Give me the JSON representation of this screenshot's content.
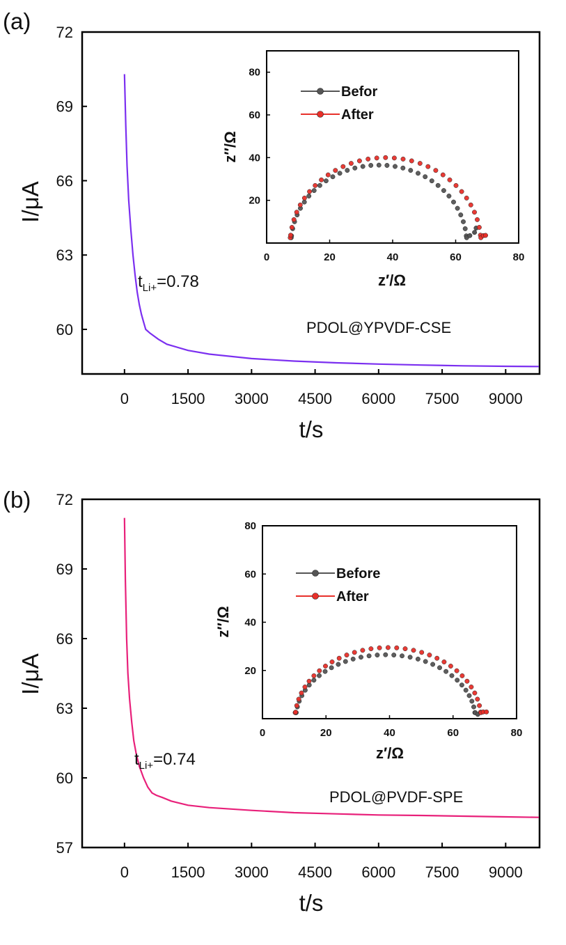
{
  "chart_data": [
    {
      "panel_label": "(a)",
      "type": "line",
      "title": "",
      "xlabel": "t/s",
      "ylabel": "I/μA",
      "xlim": [
        -1000,
        9800
      ],
      "ylim": [
        58.2,
        72
      ],
      "xticks": [
        0,
        1500,
        3000,
        4500,
        6000,
        7500,
        9000
      ],
      "yticks": [
        60,
        63,
        66,
        69,
        72
      ],
      "xtick_labels": [
        "0",
        "1500",
        "3000",
        "4500",
        "6000",
        "7500",
        "9000"
      ],
      "ytick_labels": [
        "60",
        "63",
        "66",
        "69",
        "72"
      ],
      "series": [
        {
          "name": "PDOL@YPVDF-CSE",
          "color": "#7b2ff0",
          "x": [
            0,
            30,
            60,
            100,
            150,
            200,
            250,
            300,
            350,
            400,
            450,
            500,
            600,
            800,
            1000,
            1500,
            2000,
            3000,
            4000,
            5000,
            6000,
            7000,
            8000,
            9000,
            9800
          ],
          "y": [
            70.3,
            68.2,
            66.6,
            65.2,
            64.0,
            63.0,
            62.2,
            61.5,
            61.0,
            60.6,
            60.3,
            60.0,
            59.85,
            59.6,
            59.4,
            59.15,
            59.0,
            58.82,
            58.72,
            58.65,
            58.6,
            58.56,
            58.53,
            58.51,
            58.5
          ]
        }
      ],
      "annotations": [
        {
          "base": "t",
          "sub": "Li+",
          "tail": "=0.78"
        },
        {
          "text": "PDOL@YPVDF-CSE"
        }
      ],
      "inset": {
        "type": "line",
        "xlabel": "z′/Ω",
        "ylabel": "z″/Ω",
        "xlim": [
          0,
          80
        ],
        "ylim": [
          0,
          90
        ],
        "xticks": [
          0,
          20,
          40,
          60,
          80
        ],
        "yticks": [
          20,
          40,
          60,
          80
        ],
        "xtick_labels": [
          "0",
          "20",
          "40",
          "60",
          "80"
        ],
        "ytick_labels": [
          "20",
          "40",
          "60",
          "80"
        ],
        "series": [
          {
            "name": "Befor",
            "color": "#555555",
            "x0": 7.8,
            "x1": 63.5,
            "peak": 36.5,
            "tail": [
              [
                64.5,
                3.5
              ],
              [
                66.0,
                5.0
              ],
              [
                66.5,
                7.0
              ]
            ]
          },
          {
            "name": "After",
            "color": "#e8302a",
            "x0": 7.5,
            "x1": 68.0,
            "peak": 40.0,
            "tail": [
              [
                68.8,
                3.5
              ],
              [
                69.5,
                3.6
              ]
            ]
          }
        ]
      }
    },
    {
      "panel_label": "(b)",
      "type": "line",
      "title": "",
      "xlabel": "t/s",
      "ylabel": "I/μA",
      "xlim": [
        -1000,
        9800
      ],
      "ylim": [
        57,
        72
      ],
      "xticks": [
        0,
        1500,
        3000,
        4500,
        6000,
        7500,
        9000
      ],
      "yticks": [
        57,
        60,
        63,
        66,
        69,
        72
      ],
      "xtick_labels": [
        "0",
        "1500",
        "3000",
        "4500",
        "6000",
        "7500",
        "9000"
      ],
      "ytick_labels": [
        "57",
        "60",
        "63",
        "66",
        "69",
        "72"
      ],
      "series": [
        {
          "name": "PDOL@PVDF-SPE",
          "color": "#e8207a",
          "x": [
            0,
            20,
            50,
            80,
            120,
            170,
            220,
            280,
            350,
            450,
            550,
            650,
            750,
            900,
            1100,
            1500,
            2000,
            3000,
            4000,
            5000,
            6000,
            7000,
            8000,
            9000,
            9800
          ],
          "y": [
            71.2,
            68.5,
            66.0,
            64.5,
            63.4,
            62.4,
            61.6,
            61.0,
            60.5,
            60.0,
            59.6,
            59.35,
            59.25,
            59.15,
            59.0,
            58.82,
            58.72,
            58.6,
            58.5,
            58.45,
            58.4,
            58.38,
            58.35,
            58.32,
            58.3
          ]
        }
      ],
      "annotations": [
        {
          "base": "t",
          "sub": "Li+",
          "tail": "=0.74"
        },
        {
          "text": "PDOL@PVDF-SPE"
        }
      ],
      "inset": {
        "type": "line",
        "xlabel": "z′/Ω",
        "ylabel": "z″/Ω",
        "xlim": [
          0,
          80
        ],
        "ylim": [
          0,
          80
        ],
        "xticks": [
          0,
          20,
          40,
          60,
          80
        ],
        "yticks": [
          20,
          40,
          60,
          80
        ],
        "xtick_labels": [
          "0",
          "20",
          "40",
          "60",
          "80"
        ],
        "ytick_labels": [
          "20",
          "40",
          "60",
          "80"
        ],
        "series": [
          {
            "name": "Before",
            "color": "#555555",
            "x0": 10.5,
            "x1": 67.0,
            "peak": 26.5,
            "tail": [
              [
                67.8,
                1.8
              ]
            ]
          },
          {
            "name": "After",
            "color": "#e8302a",
            "x0": 10.3,
            "x1": 68.8,
            "peak": 29.5,
            "tail": [
              [
                69.5,
                2.8
              ],
              [
                70.5,
                2.8
              ]
            ]
          }
        ]
      }
    }
  ]
}
